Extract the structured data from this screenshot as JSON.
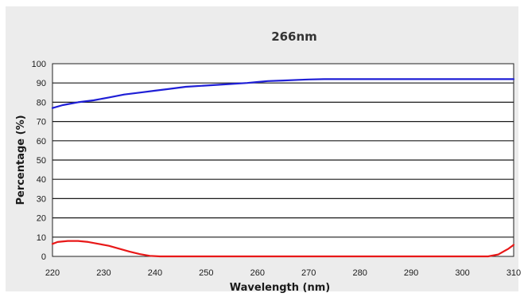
{
  "chart_data": {
    "type": "line",
    "title": "266nm",
    "xlabel": "Wavelength (nm)",
    "ylabel": "Percentage (%)",
    "xlim": [
      220,
      310
    ],
    "ylim": [
      0,
      100
    ],
    "x_ticks": [
      "220",
      "230",
      "240",
      "250",
      "260",
      "270",
      "280",
      "290",
      "300",
      "310"
    ],
    "y_ticks": [
      "0",
      "10",
      "20",
      "30",
      "40",
      "50",
      "60",
      "70",
      "80",
      "90",
      "100"
    ],
    "grid": "horizontal",
    "legend": "none",
    "series": [
      {
        "color": "#1f1fd6",
        "x": [
          220,
          222,
          225,
          228,
          231,
          234,
          237,
          240,
          243,
          246,
          249,
          252,
          255,
          258,
          260,
          262,
          265,
          268,
          270,
          273,
          276,
          280,
          284,
          288,
          292,
          296,
          300,
          305,
          310
        ],
        "y": [
          77,
          78.5,
          80,
          81,
          82.5,
          84,
          85,
          86,
          87,
          88,
          88.5,
          89,
          89.5,
          90,
          90.5,
          91,
          91.3,
          91.6,
          91.8,
          92,
          92,
          92,
          92,
          92,
          92,
          92,
          92,
          92,
          92
        ]
      },
      {
        "color": "#e81818",
        "x": [
          220,
          221,
          223,
          225,
          227,
          229,
          231,
          233,
          235,
          237,
          239,
          241,
          245,
          250,
          260,
          270,
          280,
          290,
          300,
          305,
          307,
          308,
          309,
          310
        ],
        "y": [
          6.5,
          7.5,
          8,
          8,
          7.5,
          6.5,
          5.5,
          4,
          2.5,
          1.2,
          0.3,
          0,
          0,
          0,
          0,
          0,
          0,
          0,
          0,
          0,
          1,
          2.5,
          4,
          6
        ]
      }
    ]
  }
}
